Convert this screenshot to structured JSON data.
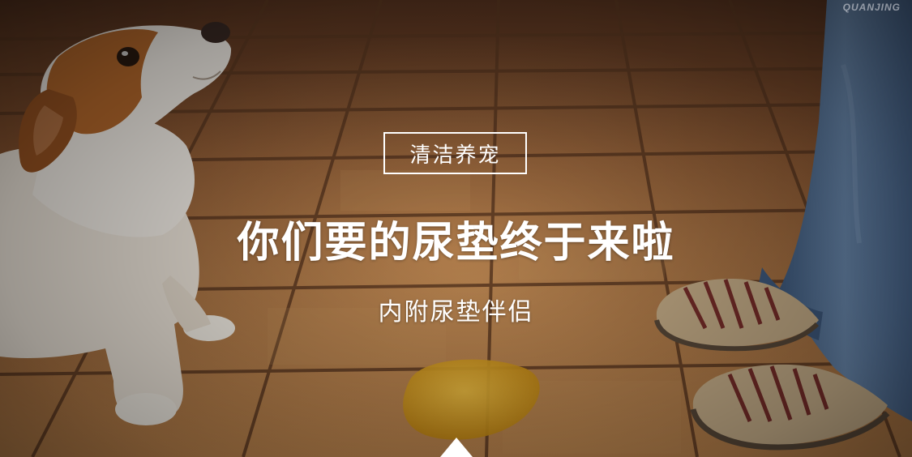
{
  "banner": {
    "tag": "清洁养宠",
    "headline": "你们要的尿垫终于来啦",
    "subline": "内附尿垫伴侣",
    "watermark": "QUANJING",
    "scroll_icon": "triangle-up-icon"
  },
  "colors": {
    "text": "#ffffff",
    "floor_tile": "#a8683a",
    "grout": "#6a4228",
    "jeans": "#4f6f95",
    "puddle": "#d8a21c"
  }
}
